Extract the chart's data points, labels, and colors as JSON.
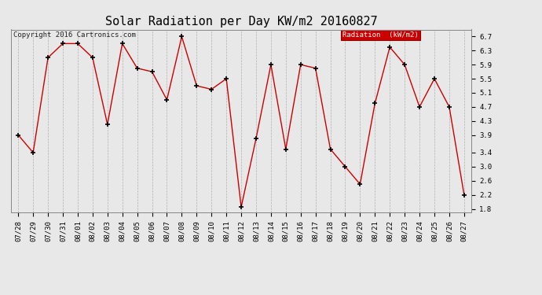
{
  "title": "Solar Radiation per Day KW/m2 20160827",
  "copyright_text": "Copyright 2016 Cartronics.com",
  "legend_label": "Radiation  (kW/m2)",
  "dates": [
    "07/28",
    "07/29",
    "07/30",
    "07/31",
    "08/01",
    "08/02",
    "08/03",
    "08/04",
    "08/05",
    "08/06",
    "08/07",
    "08/08",
    "08/09",
    "08/10",
    "08/11",
    "08/12",
    "08/13",
    "08/14",
    "08/15",
    "08/16",
    "08/17",
    "08/18",
    "08/19",
    "08/20",
    "08/21",
    "08/22",
    "08/23",
    "08/24",
    "08/25",
    "08/26",
    "08/27"
  ],
  "values": [
    3.9,
    3.4,
    6.1,
    6.5,
    6.5,
    6.1,
    4.2,
    6.5,
    5.8,
    5.7,
    4.9,
    6.7,
    5.3,
    5.2,
    5.5,
    1.85,
    3.8,
    5.9,
    3.5,
    5.9,
    5.8,
    3.5,
    3.0,
    2.5,
    4.8,
    6.4,
    5.9,
    4.7,
    5.5,
    4.7,
    2.2
  ],
  "ylim": [
    1.7,
    6.9
  ],
  "yticks": [
    1.8,
    2.2,
    2.6,
    3.0,
    3.4,
    3.9,
    4.3,
    4.7,
    5.1,
    5.5,
    5.9,
    6.3,
    6.7
  ],
  "line_color": "#cc0000",
  "marker_color": "#000000",
  "bg_color": "#e8e8e8",
  "grid_color": "#b0b0b0",
  "legend_bg": "#cc0000",
  "legend_text_color": "#ffffff",
  "title_fontsize": 11,
  "tick_fontsize": 6.5,
  "copyright_fontsize": 6.5
}
